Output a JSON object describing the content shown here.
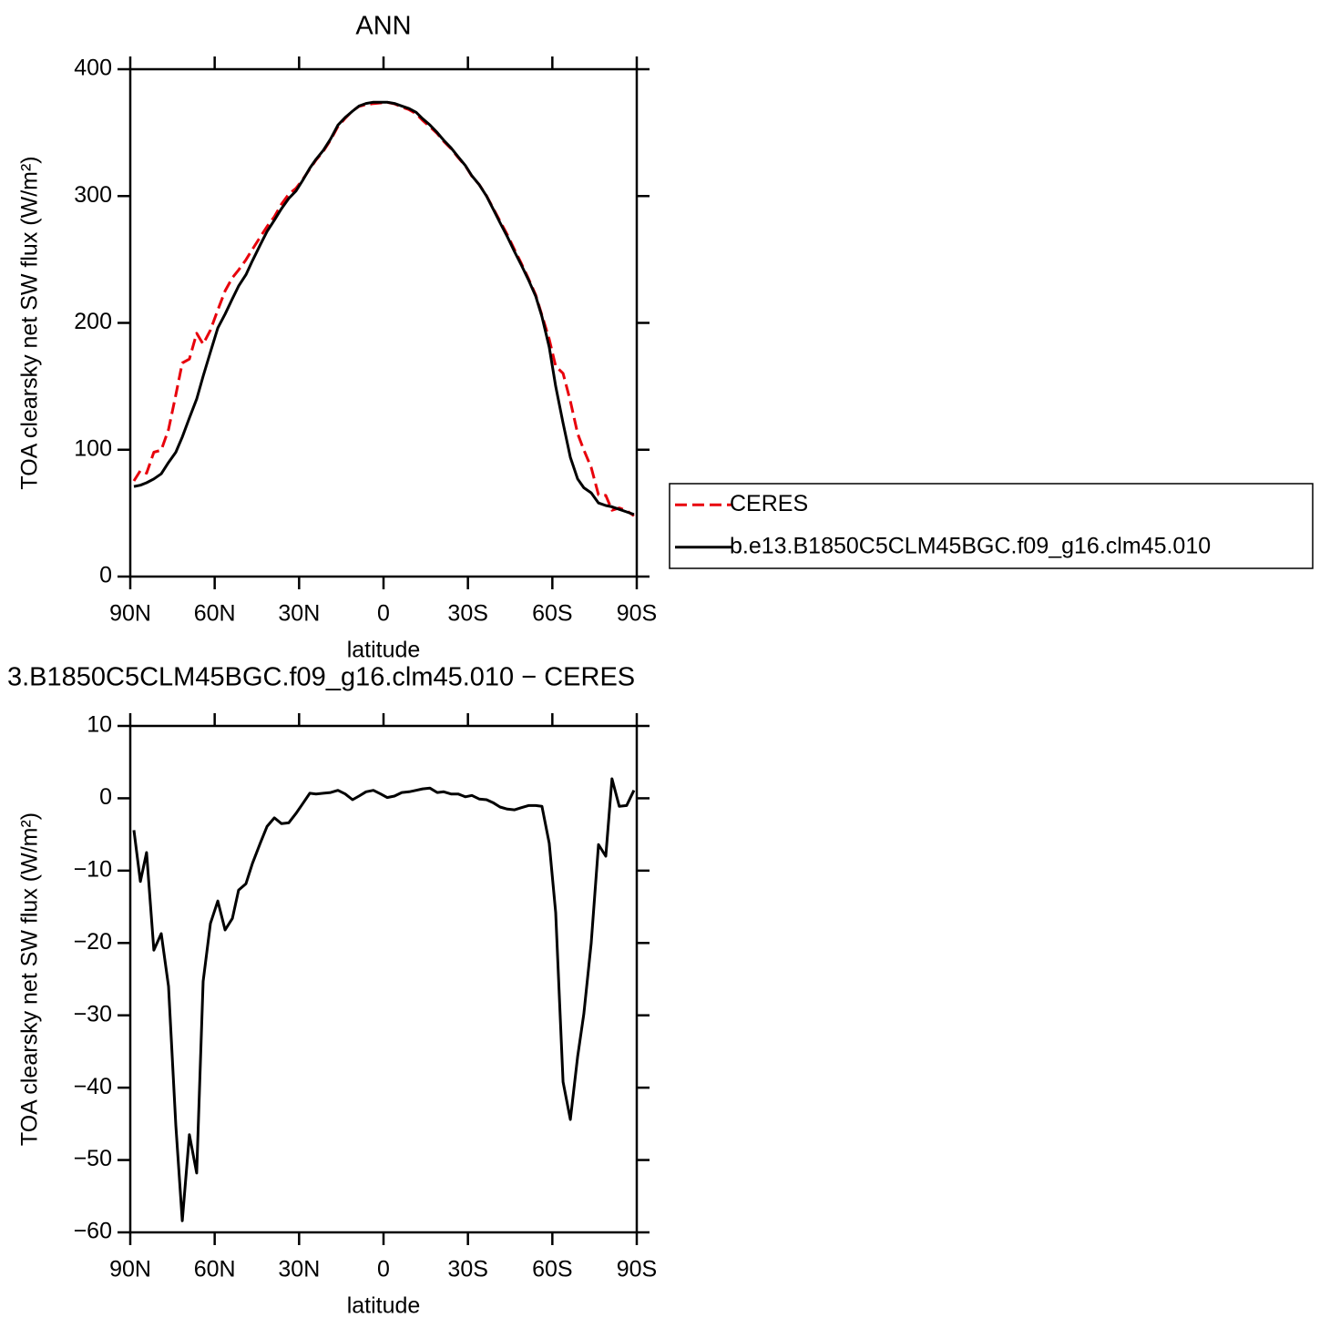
{
  "chart_data": [
    {
      "type": "line",
      "title": "ANN",
      "x_label": "latitude",
      "y_label": "TOA clearsky net SW flux (W/m²)",
      "x": [
        88.7,
        86.4,
        84.2,
        81.6,
        79,
        76.4,
        73.8,
        71.5,
        69,
        66.4,
        64.1,
        61.5,
        58.9,
        56.3,
        53.7,
        51.5,
        48.9,
        46.6,
        43.7,
        41.4,
        38.8,
        36.3,
        33.7,
        31.1,
        28.8,
        26.2,
        24,
        21.4,
        18.8,
        16.2,
        13.6,
        11,
        8.7,
        6.2,
        3.6,
        1,
        -1.3,
        -3.9,
        -6.5,
        -9.1,
        -11.6,
        -13.9,
        -16.5,
        -19.1,
        -21.4,
        -24,
        -26.5,
        -29.1,
        -31.4,
        -34,
        -36.6,
        -38.9,
        -41.4,
        -44,
        -46.6,
        -48.9,
        -51.5,
        -54.1,
        -56.3,
        -58.9,
        -61.2,
        -63.8,
        -66.4,
        -69,
        -71.2,
        -73.8,
        -76.4,
        -79,
        -81.2,
        -83.8,
        -86.4,
        -89
      ],
      "series": [
        {
          "name": "CERES",
          "color": "#e8000b",
          "dashed": true,
          "values": [
            75.4,
            83.5,
            81.5,
            98,
            99.7,
            116,
            143.2,
            168.4,
            171.5,
            191.8,
            183.3,
            194.3,
            210.2,
            225.2,
            235.6,
            241.7,
            249.8,
            258,
            268.1,
            275.9,
            283.7,
            293.5,
            301.4,
            306.1,
            312.8,
            321.3,
            328.4,
            335.3,
            344.2,
            354.9,
            361.4,
            367.2,
            370.7,
            372.1,
            372.9,
            373.4,
            373.9,
            372.7,
            370.2,
            368.1,
            364.9,
            359.7,
            354.6,
            349.2,
            343.1,
            337.4,
            330.4,
            323.8,
            315.6,
            309.1,
            300.2,
            290.6,
            280.2,
            269.5,
            257.6,
            247.3,
            235,
            222,
            206.1,
            187.2,
            165.8,
            160.2,
            138.4,
            112.7,
            99.8,
            86,
            64.4,
            64,
            52.3,
            54.1,
            52,
            47.9
          ]
        },
        {
          "name": "b.e13.B1850C5CLM45BGC.f09_g16.clm45.010",
          "color": "#000000",
          "dashed": false,
          "values": [
            71,
            72,
            74,
            77,
            81,
            90,
            98,
            110,
            125,
            140,
            158,
            177,
            196,
            207,
            219,
            229,
            238,
            249,
            262,
            272,
            281,
            290,
            298,
            304,
            312,
            322,
            329,
            336,
            345,
            356,
            362,
            367,
            371,
            373,
            374,
            374,
            374,
            373,
            371,
            369,
            366,
            361,
            356,
            350,
            344,
            338,
            331,
            324,
            316,
            309,
            300,
            290,
            279,
            268,
            256,
            246,
            234,
            221,
            205,
            181,
            150,
            121,
            94,
            77,
            70,
            66,
            58,
            56,
            55,
            53,
            51,
            49
          ]
        }
      ],
      "xlim": [
        90,
        -90
      ],
      "xticks": [
        {
          "value": 90,
          "label": "90N"
        },
        {
          "value": 60,
          "label": "60N"
        },
        {
          "value": 30,
          "label": "30N"
        },
        0,
        {
          "value": -30,
          "label": "30S"
        },
        {
          "value": -60,
          "label": "60S"
        },
        {
          "value": -90,
          "label": "90S"
        }
      ],
      "ylim": [
        0,
        400
      ],
      "yticks": [
        0,
        100,
        200,
        300,
        400
      ],
      "legend": "right"
    },
    {
      "type": "line",
      "title": "3.B1850C5CLM45BGC.f09_g16.clm45.010 − CERES",
      "x_label": "latitude",
      "y_label": "TOA clearsky net SW flux (W/m²)",
      "x": [
        88.7,
        86.4,
        84.2,
        81.6,
        79,
        76.4,
        73.8,
        71.5,
        69,
        66.4,
        64.1,
        61.5,
        58.9,
        56.3,
        53.7,
        51.5,
        48.9,
        46.6,
        43.7,
        41.4,
        38.8,
        36.3,
        33.7,
        31.1,
        28.8,
        26.2,
        24,
        21.4,
        18.8,
        16.2,
        13.6,
        11,
        8.7,
        6.2,
        3.6,
        1,
        -1.3,
        -3.9,
        -6.5,
        -9.1,
        -11.6,
        -13.9,
        -16.5,
        -19.1,
        -21.4,
        -24,
        -26.5,
        -29.1,
        -31.4,
        -34,
        -36.6,
        -38.9,
        -41.4,
        -44,
        -46.6,
        -48.9,
        -51.5,
        -54.1,
        -56.3,
        -58.9,
        -61.2,
        -63.8,
        -66.4,
        -69,
        -71.2,
        -73.8,
        -76.4,
        -79,
        -81.2,
        -83.8,
        -86.4,
        -89
      ],
      "values": [
        -4.4,
        -11.5,
        -7.5,
        -21,
        -18.7,
        -26,
        -45.2,
        -58.4,
        -46.5,
        -51.8,
        -25.3,
        -17.3,
        -14.2,
        -18.2,
        -16.6,
        -12.7,
        -11.8,
        -9,
        -6.1,
        -3.9,
        -2.7,
        -3.5,
        -3.4,
        -2.1,
        -0.8,
        0.7,
        0.6,
        0.7,
        0.8,
        1.1,
        0.6,
        -0.2,
        0.3,
        0.9,
        1.1,
        0.6,
        0.1,
        0.3,
        0.8,
        0.9,
        1.1,
        1.3,
        1.4,
        0.8,
        0.9,
        0.6,
        0.6,
        0.2,
        0.4,
        -0.1,
        -0.2,
        -0.6,
        -1.2,
        -1.5,
        -1.6,
        -1.3,
        -1,
        -1,
        -1.1,
        -6.2,
        -15.8,
        -39.2,
        -44.4,
        -35.7,
        -29.8,
        -20,
        -6.4,
        -8,
        2.7,
        -1.1,
        -1,
        1.1
      ],
      "color": "#000000",
      "xlim": [
        90,
        -90
      ],
      "xticks": [
        {
          "value": 90,
          "label": "90N"
        },
        {
          "value": 60,
          "label": "60N"
        },
        {
          "value": 30,
          "label": "30N"
        },
        0,
        {
          "value": -30,
          "label": "30S"
        },
        {
          "value": -60,
          "label": "60S"
        },
        {
          "value": -90,
          "label": "90S"
        }
      ],
      "ylim": [
        -60,
        10
      ],
      "yticks": [
        {
          "value": -60,
          "label": "−60"
        },
        {
          "value": -50,
          "label": "−50"
        },
        {
          "value": -40,
          "label": "−40"
        },
        {
          "value": -30,
          "label": "−30"
        },
        {
          "value": -20,
          "label": "−20"
        },
        {
          "value": -10,
          "label": "−10"
        },
        0,
        10
      ]
    }
  ]
}
